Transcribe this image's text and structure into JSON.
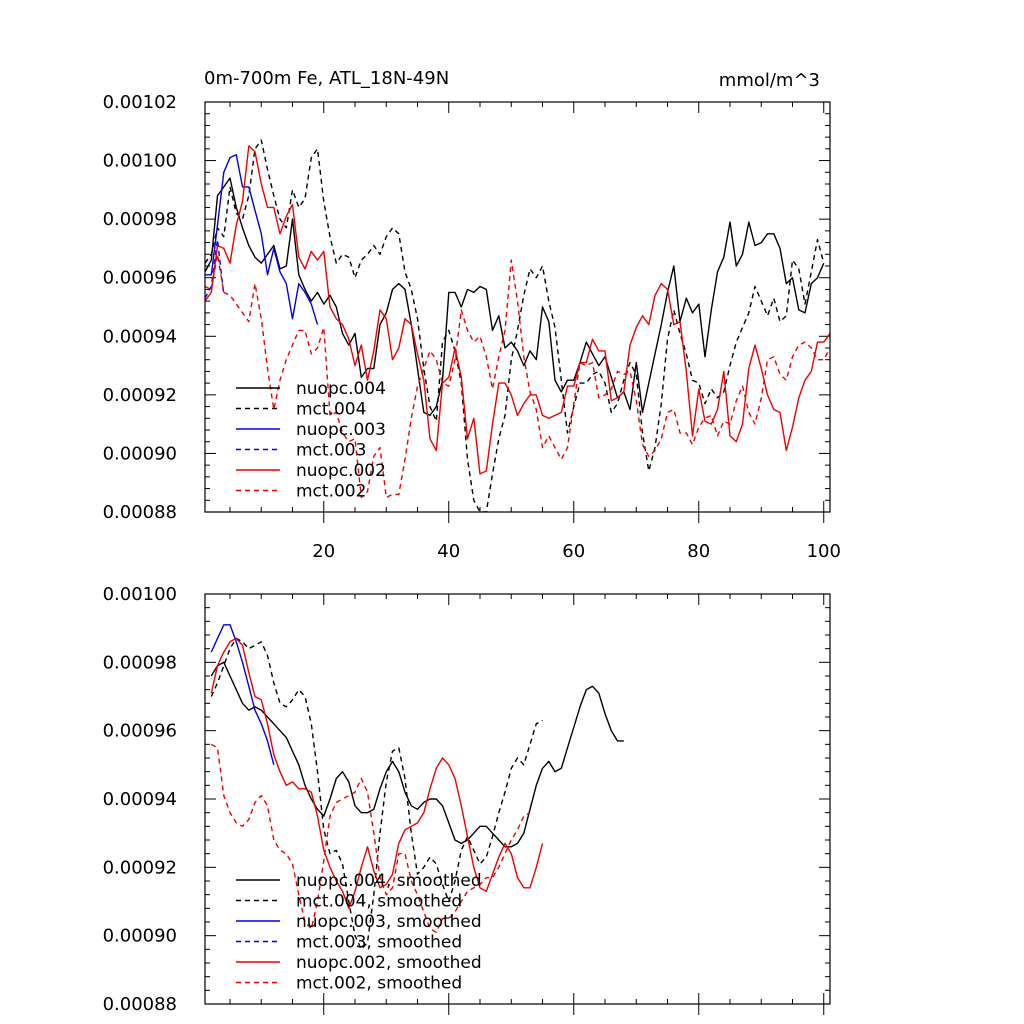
{
  "colors": {
    "black": "#000000",
    "blue": "#0000ee",
    "red": "#ee0000"
  },
  "chart_data": [
    {
      "type": "line",
      "title_left": "0m-700m Fe, ATL_18N-49N",
      "title_right": "mmol/m^3",
      "xlim": [
        1,
        101
      ],
      "ylim": [
        0.00088,
        0.00102
      ],
      "x_ticks": [
        20,
        40,
        60,
        80,
        100
      ],
      "x_tick_labels": [
        "20",
        "40",
        "60",
        "80",
        "100"
      ],
      "y_ticks": [
        0.00088,
        0.0009,
        0.00092,
        0.00094,
        0.00096,
        0.00098,
        0.001,
        0.00102
      ],
      "y_tick_labels": [
        "0.00088",
        "0.00090",
        "0.00092",
        "0.00094",
        "0.00096",
        "0.00098",
        "0.00100",
        "0.00102"
      ],
      "legend_position": "lower-left",
      "series": [
        {
          "name": "nuopc.004",
          "color": "black",
          "dash": "solid",
          "x_start": 1,
          "values": [
            0.000962,
            0.000966,
            0.000988,
            0.000991,
            0.000994,
            0.000984,
            0.000977,
            0.000971,
            0.000967,
            0.000965,
            0.000968,
            0.000971,
            0.000963,
            0.000964,
            0.00098,
            0.000961,
            0.000956,
            0.000952,
            0.000955,
            0.000951,
            0.000954,
            0.00095,
            0.000941,
            0.000937,
            0.000941,
            0.000926,
            0.000929,
            0.000929,
            0.000944,
            0.000948,
            0.000956,
            0.000958,
            0.000956,
            0.000944,
            0.000929,
            0.000914,
            0.000913,
            0.000916,
            0.000925,
            0.000955,
            0.000955,
            0.00095,
            0.000956,
            0.000955,
            0.000957,
            0.000956,
            0.000942,
            0.000947,
            0.000936,
            0.000938,
            0.000935,
            0.00093,
            0.000935,
            0.000932,
            0.00095,
            0.000945,
            0.000925,
            0.000921,
            0.000925,
            0.000925,
            0.000931,
            0.000938,
            0.000934,
            0.00093,
            0.000933,
            0.000926,
            0.000919,
            0.000921,
            0.000915,
            0.000931,
            0.000914,
            0.000924,
            0.000934,
            0.000944,
            0.000955,
            0.000964,
            0.000945,
            0.000953,
            0.000948,
            0.000951,
            0.000933,
            0.000949,
            0.000962,
            0.000967,
            0.000979,
            0.000964,
            0.000968,
            0.000979,
            0.000971,
            0.000972,
            0.000975,
            0.000975,
            0.00097,
            0.000958,
            0.00096,
            0.000949,
            0.000948,
            0.000958,
            0.00096,
            0.000965
          ]
        },
        {
          "name": "mct.004",
          "color": "black",
          "dash": "dash",
          "x_start": 1,
          "values": [
            0.000965,
            0.000968,
            0.000977,
            0.000974,
            0.000991,
            0.000982,
            0.00098,
            0.000988,
            0.001004,
            0.001007,
            0.000997,
            0.000988,
            0.00098,
            0.000977,
            0.00099,
            0.000984,
            0.000987,
            0.001001,
            0.001004,
            0.000986,
            0.000974,
            0.000965,
            0.000968,
            0.000967,
            0.00096,
            0.000966,
            0.000968,
            0.000971,
            0.000968,
            0.000974,
            0.000977,
            0.000975,
            0.000962,
            0.000956,
            0.000946,
            0.000929,
            0.000916,
            0.000911,
            0.000938,
            0.000942,
            0.000935,
            0.000924,
            0.000898,
            0.000884,
            0.00088,
            0.00088,
            0.000893,
            0.000905,
            0.000913,
            0.000932,
            0.000942,
            0.000954,
            0.000963,
            0.00096,
            0.000964,
            0.000952,
            0.000943,
            0.000925,
            0.000907,
            0.000916,
            0.000924,
            0.000924,
            0.000927,
            0.000928,
            0.000924,
            0.000914,
            0.000917,
            0.000925,
            0.000931,
            0.000927,
            0.000907,
            0.000894,
            0.000902,
            0.000917,
            0.000939,
            0.000949,
            0.000941,
            0.000934,
            0.000925,
            0.000924,
            0.000917,
            0.000922,
            0.000919,
            0.000921,
            0.00093,
            0.000938,
            0.000943,
            0.000948,
            0.000957,
            0.000952,
            0.000947,
            0.000953,
            0.000945,
            0.000947,
            0.000966,
            0.000963,
            0.000951,
            0.000962,
            0.000973,
            0.000965
          ]
        },
        {
          "name": "nuopc.003",
          "color": "blue",
          "dash": "solid",
          "x_start": 1,
          "values": [
            0.000961,
            0.000961,
            0.000978,
            0.000996,
            0.001001,
            0.001002,
            0.000991,
            0.000991,
            0.000983,
            0.000975,
            0.000961,
            0.00097,
            0.000962,
            0.000958,
            0.000946,
            0.000958,
            0.000955,
            0.000951,
            0.000944
          ]
        },
        {
          "name": "mct.003",
          "color": "blue",
          "dash": "dash",
          "x_start": 1,
          "values": [
            0.000953,
            0.000957,
            0.000973,
            0.000954
          ]
        },
        {
          "name": "nuopc.002",
          "color": "red",
          "dash": "solid",
          "x_start": 1,
          "values": [
            0.000952,
            0.000955,
            0.000971,
            0.00097,
            0.000965,
            0.000978,
            0.000986,
            0.001005,
            0.001003,
            0.000992,
            0.000984,
            0.000984,
            0.000975,
            0.000981,
            0.000985,
            0.000967,
            0.000963,
            0.000969,
            0.000966,
            0.000969,
            0.00095,
            0.000946,
            0.000944,
            0.000939,
            0.00093,
            0.000937,
            0.000925,
            0.000935,
            0.000949,
            0.000946,
            0.000932,
            0.000936,
            0.000946,
            0.000944,
            0.000934,
            0.000925,
            0.000905,
            0.000901,
            0.000924,
            0.000926,
            0.000936,
            0.000926,
            0.000905,
            0.000912,
            0.000893,
            0.000894,
            0.00091,
            0.000924,
            0.000924,
            0.00092,
            0.000913,
            0.000917,
            0.00092,
            0.00092,
            0.000913,
            0.000912,
            0.000913,
            0.000914,
            0.000923,
            0.000923,
            0.000931,
            0.000931,
            0.000939,
            0.000935,
            0.000935,
            0.000918,
            0.000919,
            0.000921,
            0.000937,
            0.000943,
            0.000947,
            0.000944,
            0.000954,
            0.000958,
            0.000956,
            0.000944,
            0.000945,
            0.000928,
            0.000906,
            0.000922,
            0.000911,
            0.00091,
            0.000915,
            0.000928,
            0.000906,
            0.000904,
            0.00091,
            0.000929,
            0.000937,
            0.000929,
            0.00092,
            0.000915,
            0.000914,
            0.000901,
            0.000909,
            0.000919,
            0.000925,
            0.000928,
            0.000938,
            0.000938,
            0.000941
          ]
        },
        {
          "name": "mct.002",
          "color": "red",
          "dash": "dash",
          "x_start": 1,
          "values": [
            0.000957,
            0.000956,
            0.000968,
            0.000955,
            0.000954,
            0.000951,
            0.000948,
            0.000945,
            0.000958,
            0.000946,
            0.000929,
            0.000915,
            0.000925,
            0.000932,
            0.000937,
            0.000942,
            0.000942,
            0.000934,
            0.000936,
            0.000943,
            0.000913,
            0.000914,
            0.000907,
            0.000904,
            0.000905,
            0.000885,
            0.000887,
            0.000899,
            0.000902,
            0.000885,
            0.000886,
            0.000886,
            0.000898,
            0.000912,
            0.000923,
            0.000929,
            0.000935,
            0.000932,
            0.000924,
            0.000923,
            0.000932,
            0.000949,
            0.000942,
            0.000938,
            0.00094,
            0.000933,
            0.000922,
            0.000933,
            0.000942,
            0.000966,
            0.000952,
            0.000933,
            0.000921,
            0.000915,
            0.000902,
            0.000906,
            0.000902,
            0.000898,
            0.000902,
            0.000917,
            0.000931,
            0.00093,
            0.000931,
            0.000919,
            0.00092,
            0.000922,
            0.000928,
            0.000927,
            0.000928,
            0.000918,
            0.000903,
            0.000899,
            0.000901,
            0.000905,
            0.000914,
            0.000915,
            0.000907,
            0.000907,
            0.000903,
            0.000909,
            0.000912,
            0.000913,
            0.000906,
            0.000911,
            0.00091,
            0.000918,
            0.000923,
            0.000914,
            0.00091,
            0.000919,
            0.000932,
            0.000933,
            0.000927,
            0.000925,
            0.000933,
            0.000937,
            0.000938,
            0.000936,
            0.000932,
            0.000932,
            0.000936
          ]
        }
      ],
      "legend": [
        {
          "label": "nuopc.004",
          "color": "black",
          "dash": "solid"
        },
        {
          "label": "mct.004",
          "color": "black",
          "dash": "dash"
        },
        {
          "label": "nuopc.003",
          "color": "blue",
          "dash": "solid"
        },
        {
          "label": "mct.003",
          "color": "blue",
          "dash": "dash"
        },
        {
          "label": "nuopc.002",
          "color": "red",
          "dash": "solid"
        },
        {
          "label": "mct.002",
          "color": "red",
          "dash": "dash"
        }
      ]
    },
    {
      "type": "line",
      "xlim": [
        1,
        101
      ],
      "ylim": [
        0.00088,
        0.001
      ],
      "x_ticks": [
        20,
        40,
        60,
        80,
        100
      ],
      "x_tick_labels": [],
      "y_ticks": [
        0.00088,
        0.0009,
        0.00092,
        0.00094,
        0.00096,
        0.00098,
        0.001
      ],
      "y_tick_labels": [
        "0.00088",
        "0.00090",
        "0.00092",
        "0.00094",
        "0.00096",
        "0.00098",
        "0.00100"
      ],
      "legend_position": "lower-left",
      "series": [
        {
          "name": "nuopc.004, smoothed",
          "color": "black",
          "dash": "solid",
          "x_start": 2,
          "values": [
            0.000976,
            0.000979,
            0.00098,
            0.000976,
            0.000972,
            0.000968,
            0.000966,
            0.000967,
            0.000966,
            0.000964,
            0.000962,
            0.00096,
            0.000958,
            0.000954,
            0.00095,
            0.000944,
            0.00094,
            0.000937,
            0.000935,
            0.00094,
            0.000946,
            0.000948,
            0.000945,
            0.000938,
            0.000936,
            0.000936,
            0.000937,
            0.000943,
            0.000948,
            0.000951,
            0.000948,
            0.000942,
            0.000938,
            0.000937,
            0.000939,
            0.00094,
            0.00094,
            0.000938,
            0.000933,
            0.000928,
            0.000927,
            0.000928,
            0.00093,
            0.000932,
            0.000932,
            0.00093,
            0.000928,
            0.000926,
            0.000926,
            0.000927,
            0.00093,
            0.000937,
            0.000944,
            0.000949,
            0.000951,
            0.000948,
            0.000949,
            0.000955,
            0.000961,
            0.000967,
            0.000972,
            0.000973,
            0.000971,
            0.000965,
            0.00096,
            0.000957,
            0.000957
          ]
        },
        {
          "name": "mct.004, smoothed",
          "color": "black",
          "dash": "dash",
          "x_start": 2,
          "values": [
            0.00097,
            0.000974,
            0.000979,
            0.000984,
            0.000987,
            0.000986,
            0.000984,
            0.000985,
            0.000986,
            0.000982,
            0.000974,
            0.000968,
            0.000967,
            0.000969,
            0.000972,
            0.00097,
            0.000962,
            0.000948,
            0.000931,
            0.000924,
            0.000925,
            0.000921,
            0.00091,
            0.0009,
            0.000896,
            0.000898,
            0.000912,
            0.00093,
            0.000945,
            0.000954,
            0.000955,
            0.000946,
            0.00093,
            0.000918,
            0.00092,
            0.000923,
            0.000921,
            0.000915,
            0.00091,
            0.000916,
            0.000925,
            0.000929,
            0.000925,
            0.000921,
            0.000923,
            0.000929,
            0.000936,
            0.000942,
            0.000949,
            0.000952,
            0.00095,
            0.000956,
            0.000962,
            0.000963
          ]
        },
        {
          "name": "nuopc.003, smoothed",
          "color": "blue",
          "dash": "solid",
          "x_start": 2,
          "values": [
            0.000983,
            0.000987,
            0.000991,
            0.000991,
            0.000986,
            0.00098,
            0.000973,
            0.000966,
            0.000962,
            0.000957,
            0.00095
          ]
        },
        {
          "name": "mct.003, smoothed",
          "color": "blue",
          "dash": "dash",
          "x_start": 2,
          "values": [
            0.000956
          ]
        },
        {
          "name": "nuopc.002, smoothed",
          "color": "red",
          "dash": "solid",
          "x_start": 2,
          "values": [
            0.000971,
            0.000979,
            0.000983,
            0.000986,
            0.000987,
            0.000985,
            0.000977,
            0.00097,
            0.000969,
            0.000962,
            0.000953,
            0.000948,
            0.000944,
            0.000945,
            0.000943,
            0.000943,
            0.000942,
            0.000935,
            0.000925,
            0.00092,
            0.000916,
            0.000913,
            0.000908,
            0.000913,
            0.00092,
            0.000926,
            0.000919,
            0.000914,
            0.000915,
            0.000918,
            0.000927,
            0.000931,
            0.000932,
            0.000933,
            0.000936,
            0.000943,
            0.000949,
            0.000952,
            0.00095,
            0.000946,
            0.000938,
            0.000929,
            0.00092,
            0.000914,
            0.000913,
            0.000918,
            0.000923,
            0.000927,
            0.000924,
            0.000917,
            0.000914,
            0.000914,
            0.00092,
            0.000927
          ]
        },
        {
          "name": "mct.002, smoothed",
          "color": "red",
          "dash": "dash",
          "x_start": 2,
          "values": [
            0.000956,
            0.000955,
            0.000941,
            0.000936,
            0.000933,
            0.000932,
            0.000934,
            0.000939,
            0.000941,
            0.000938,
            0.000928,
            0.000925,
            0.000924,
            0.000921,
            0.000912,
            0.000904,
            0.000902,
            0.00091,
            0.000922,
            0.000935,
            0.000939,
            0.00094,
            0.000941,
            0.000942,
            0.000946,
            0.000942,
            0.00093,
            0.000917,
            0.000912,
            0.000914,
            0.000924,
            0.000924,
            0.000916,
            0.000912,
            0.000907,
            0.000902,
            0.000901,
            0.000905,
            0.000905,
            0.000907,
            0.00091,
            0.000913,
            0.000914,
            0.000915,
            0.000917,
            0.000917,
            0.00092,
            0.000924,
            0.000928,
            0.000931,
            0.000935,
            0.000936
          ]
        }
      ],
      "legend": [
        {
          "label": "nuopc.004, smoothed",
          "color": "black",
          "dash": "solid"
        },
        {
          "label": "mct.004, smoothed",
          "color": "black",
          "dash": "dash"
        },
        {
          "label": "nuopc.003, smoothed",
          "color": "blue",
          "dash": "solid"
        },
        {
          "label": "mct.003, smoothed",
          "color": "blue",
          "dash": "dash"
        },
        {
          "label": "nuopc.002, smoothed",
          "color": "red",
          "dash": "solid"
        },
        {
          "label": "mct.002, smoothed",
          "color": "red",
          "dash": "dash"
        }
      ]
    }
  ]
}
